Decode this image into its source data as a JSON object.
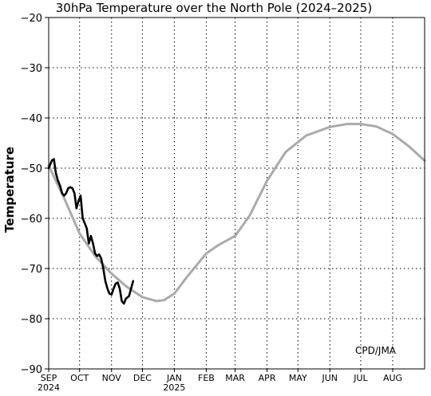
{
  "chart_data": {
    "type": "line",
    "title": "30hPa Temperature over the North Pole (2024–2025)",
    "ylabel": "Temperature",
    "ylim": [
      -90,
      -20
    ],
    "yticks": [
      -20,
      -30,
      -40,
      -50,
      -60,
      -70,
      -80,
      -90
    ],
    "ytick_labels": [
      "−20",
      "−30",
      "−40",
      "−50",
      "−60",
      "−70",
      "−80",
      "−90"
    ],
    "xlim_days": [
      0,
      365
    ],
    "xticks": [
      {
        "day": 0,
        "label": "SEP",
        "year": "2024"
      },
      {
        "day": 30,
        "label": "OCT"
      },
      {
        "day": 61,
        "label": "NOV"
      },
      {
        "day": 91,
        "label": "DEC"
      },
      {
        "day": 122,
        "label": "JAN",
        "year": "2025"
      },
      {
        "day": 153,
        "label": "FEB"
      },
      {
        "day": 181,
        "label": "MAR"
      },
      {
        "day": 212,
        "label": "APR"
      },
      {
        "day": 242,
        "label": "MAY"
      },
      {
        "day": 273,
        "label": "JUN"
      },
      {
        "day": 303,
        "label": "JUL"
      },
      {
        "day": 334,
        "label": "AUG"
      }
    ],
    "grid": true,
    "credit": "CPD/JMA",
    "series": [
      {
        "color": "#aaaaaa",
        "x": [
          0,
          15,
          30,
          45,
          61,
          75,
          91,
          105,
          112,
          122,
          135,
          153,
          165,
          181,
          195,
          212,
          230,
          250,
          273,
          290,
          303,
          318,
          334,
          350,
          365
        ],
        "y": [
          -49.5,
          -56,
          -63,
          -67.5,
          -71,
          -73.5,
          -75.7,
          -76.5,
          -76.3,
          -75,
          -71.5,
          -67,
          -65.3,
          -63.5,
          -59.5,
          -52.5,
          -46.8,
          -43.5,
          -41.8,
          -41.2,
          -41.2,
          -41.7,
          -43.2,
          -45.7,
          -48.5
        ]
      },
      {
        "color": "#000000",
        "x": [
          0,
          3,
          5,
          7,
          9,
          11,
          13,
          15,
          17,
          19,
          21,
          23,
          25,
          27,
          29,
          31,
          33,
          35,
          37,
          39,
          41,
          43,
          45,
          47,
          49,
          51,
          53,
          55,
          57,
          59,
          61,
          63,
          65,
          67,
          69,
          71,
          73,
          75,
          78,
          80,
          82
        ],
        "y": [
          -50,
          -48.5,
          -48.2,
          -51,
          -52.5,
          -53.5,
          -55,
          -55.5,
          -55,
          -54,
          -53.8,
          -54,
          -55,
          -58,
          -56.5,
          -55.5,
          -60,
          -61,
          -62,
          -65,
          -63.5,
          -65,
          -67,
          -67.5,
          -67.2,
          -68,
          -70,
          -72.5,
          -74,
          -75,
          -75.2,
          -74,
          -73,
          -72.8,
          -74,
          -76.5,
          -77,
          -76,
          -75.5,
          -74,
          -72.5
        ]
      }
    ]
  }
}
